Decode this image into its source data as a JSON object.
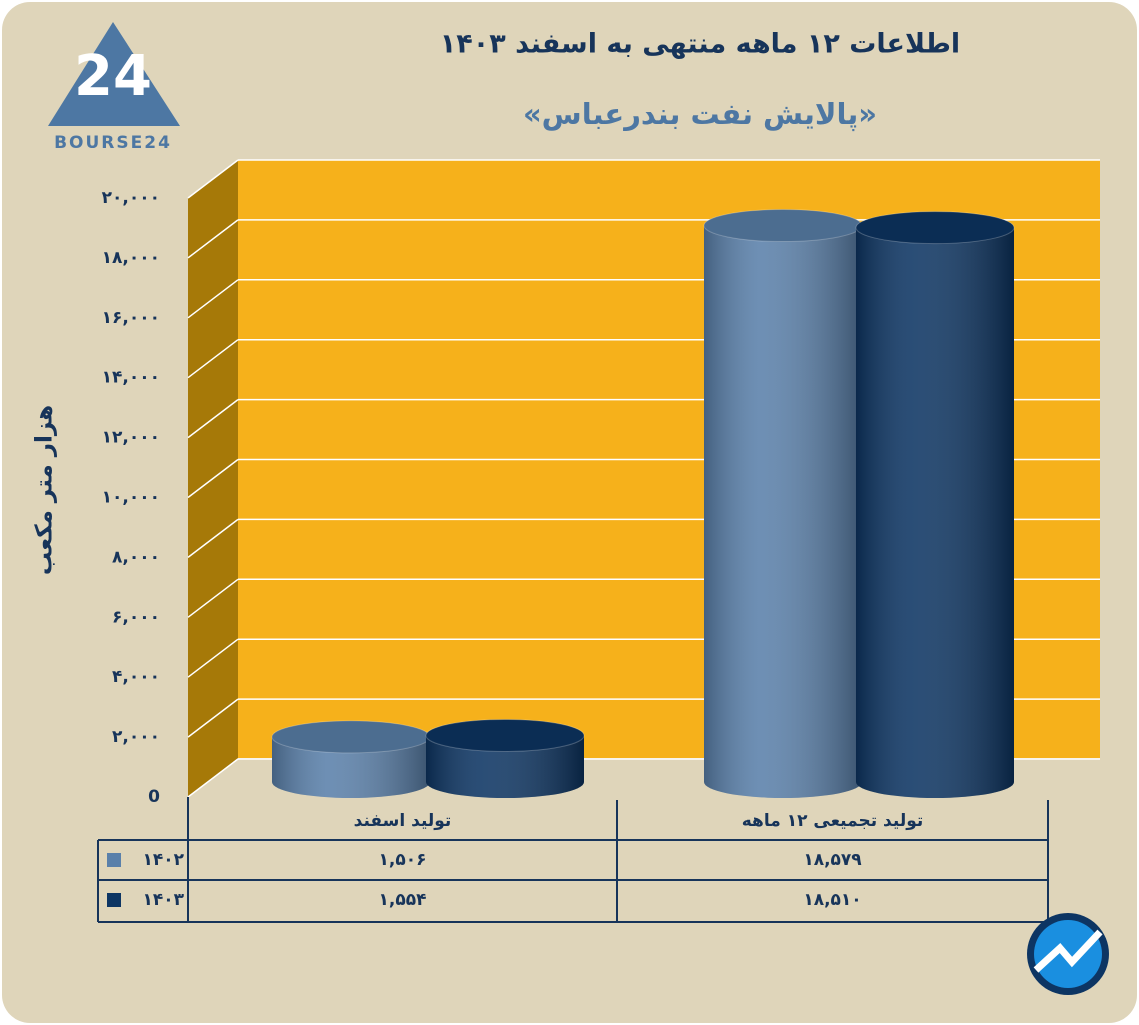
{
  "logo": "BOURSE24",
  "chart_data": {
    "type": "cylinder",
    "title": "اطلاعات ۱۲ ماهه منتهی به اسفند ۱۴۰۳",
    "subtitle": "«پالایش نفت بندرعباس»",
    "y_label": "هزار متر مکعب",
    "categories": [
      "تولید اسفند",
      "تولید تجمیعی ۱۲ ماهه"
    ],
    "series": [
      {
        "name": "۱۴۰۲",
        "color": "#5a80aa",
        "values": [
          1506,
          18579
        ],
        "value_labels": [
          "۱,۵۰۶",
          "۱۸,۵۷۹"
        ]
      },
      {
        "name": "۱۴۰۳",
        "color": "#0d3563",
        "values": [
          1554,
          18510
        ],
        "value_labels": [
          "۱,۵۵۴",
          "۱۸,۵۱۰"
        ]
      }
    ],
    "ylim": [
      0,
      20000
    ],
    "yticks": [
      0,
      {
        "value": 2000,
        "label": "۲,۰۰۰"
      },
      {
        "value": 4000,
        "label": "۴,۰۰۰"
      },
      {
        "value": 6000,
        "label": "۶,۰۰۰"
      },
      {
        "value": 8000,
        "label": "۸,۰۰۰"
      },
      {
        "value": 10000,
        "label": "۱۰,۰۰۰"
      },
      {
        "value": 12000,
        "label": "۱۲,۰۰۰"
      },
      {
        "value": 14000,
        "label": "۱۴,۰۰۰"
      },
      {
        "value": 16000,
        "label": "۱۶,۰۰۰"
      },
      {
        "value": 18000,
        "label": "۱۸,۰۰۰"
      },
      {
        "value": 20000,
        "label": "۲۰,۰۰۰"
      }
    ],
    "grid": true
  }
}
